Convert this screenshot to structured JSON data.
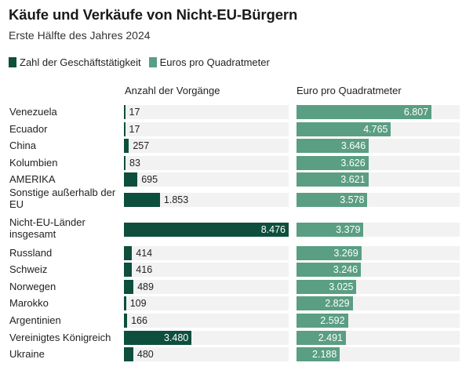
{
  "header": {
    "title": "Käufe und Verkäufe von Nicht-EU-Bürgern",
    "subtitle": "Erste Hälfte des Jahres 2024"
  },
  "legend": [
    {
      "label": "Zahl der Geschäftstätigkeit",
      "color": "#0d4f3c"
    },
    {
      "label": "Euros pro Quadratmeter",
      "color": "#5a9e83"
    }
  ],
  "columns": {
    "left": "Anzahl der Vorgänge",
    "right": "Euro pro Quadratmeter"
  },
  "chart_data": {
    "type": "bar",
    "title": "Käufe und Verkäufe von Nicht-EU-Bürgern",
    "subtitle": "Erste Hälfte des Jahres 2024",
    "categories": [
      "Venezuela",
      "Ecuador",
      "China",
      "Kolumbien",
      "AMERIKA",
      "Sonstige außerhalb der EU",
      "Nicht-EU-Länder insgesamt",
      "Russland",
      "Schweiz",
      "Norwegen",
      "Marokko",
      "Argentinien",
      "Vereinigtes Königreich",
      "Ukraine"
    ],
    "series": [
      {
        "name": "Zahl der Geschäftstätigkeit",
        "column_title": "Anzahl der Vorgänge",
        "color": "#0d4f3c",
        "values": [
          17,
          17,
          257,
          83,
          695,
          1853,
          8476,
          414,
          416,
          489,
          109,
          166,
          3480,
          480
        ],
        "labels": [
          "17",
          "17",
          "257",
          "83",
          "695",
          "1.853",
          "8.476",
          "414",
          "416",
          "489",
          "109",
          "166",
          "3.480",
          "480"
        ],
        "xlim": [
          0,
          8476
        ]
      },
      {
        "name": "Euros pro Quadratmeter",
        "column_title": "Euro pro Quadratmeter",
        "color": "#5a9e83",
        "values": [
          6807,
          4765,
          3646,
          3626,
          3621,
          3578,
          3379,
          3269,
          3246,
          3025,
          2829,
          2592,
          2491,
          2188
        ],
        "labels": [
          "6.807",
          "4.765",
          "3.646",
          "3.626",
          "3.621",
          "3.578",
          "3.379",
          "3.269",
          "3.246",
          "3.025",
          "2.829",
          "2.592",
          "2.491",
          "2.188"
        ],
        "xlim": [
          0,
          8227
        ]
      }
    ]
  }
}
